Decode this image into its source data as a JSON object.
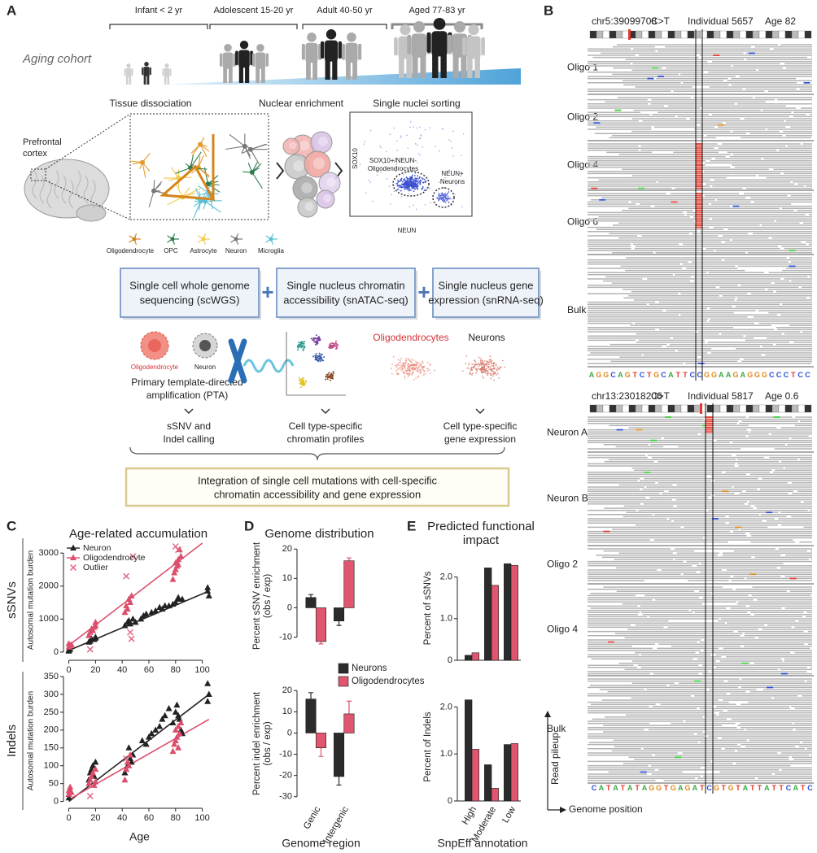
{
  "panel_labels": [
    "A",
    "B",
    "C",
    "D",
    "E"
  ],
  "panel_a": {
    "age_groups": [
      "Infant < 2 yr",
      "Adolescent  15-20 yr",
      "Adult  40-50 yr",
      "Aged 77-83 yr"
    ],
    "cohort_label": "Aging cohort",
    "steps": [
      "Tissue dissociation",
      "Nuclear enrichment",
      "Single nuclei sorting"
    ],
    "region": [
      "Prefrontal",
      "cortex"
    ],
    "cell_types": [
      "Oligodendrocyte",
      "OPC",
      "Astrocyte",
      "Neuron",
      "Microglia"
    ],
    "facs": {
      "y_axis": "SOX10",
      "x_axis": "NEUN",
      "gate_1": [
        "SOX10+/NEUN-",
        "Oligodendrocytes"
      ],
      "gate_2": [
        "NEUN+",
        "Neurons"
      ]
    },
    "methods": [
      [
        "Single cell whole genome",
        "sequencing (scWGS)"
      ],
      [
        "Single nucleus chromatin",
        "accessibility (snATAC-seq)"
      ],
      [
        "Single nucleus gene",
        "expression (snRNA-seq)"
      ]
    ],
    "connectors": [
      "+",
      "+"
    ],
    "pta_cells": [
      "Oligodendrocyte",
      "Neuron"
    ],
    "pta": [
      "Primary template-directed",
      "amplification (PTA)"
    ],
    "expression_groups": [
      "Oligodendrocytes",
      "Neurons"
    ],
    "outputs": [
      [
        "sSNV and",
        "Indel calling"
      ],
      [
        "Cell type-specific",
        "chromatin profiles"
      ],
      [
        "Cell type-specific",
        "gene expression"
      ]
    ],
    "integration": [
      "Integration of single cell mutations with cell-specific",
      "chromatin accessibility and gene expression"
    ]
  },
  "panel_b": {
    "loci": [
      {
        "position": "chr5:39099708",
        "change": "C>T",
        "individual": "Individual 5657",
        "age": "Age 82",
        "tracks": [
          "Oligo 1",
          "Oligo 2",
          "Oligo 4",
          "Oligo 6",
          "Bulk"
        ],
        "sequence": "AGGCAGTCTGCATTCCGGAAGAGGGCCCTCC"
      },
      {
        "position": "chr13:23018206",
        "change": "C>T",
        "individual": "Individual 5817",
        "age": "Age 0.6",
        "tracks": [
          "Neuron A",
          "Neuron B",
          "Oligo 2",
          "Oligo 4",
          "Bulk"
        ],
        "sequence": "CATATATAGGTGAGATCGTGTATTATTCATC"
      }
    ],
    "y_axis": "Read pileup",
    "x_axis": "Genome position"
  },
  "chart_data": [
    {
      "type": "scatter",
      "title": "Age-related accumulation",
      "side_label": "sSNVs",
      "ylabel": "Autosomal mutation burden",
      "xlim": [
        -4,
        110
      ],
      "xticks": [
        0,
        20,
        40,
        60,
        80,
        100
      ],
      "ylim": [
        -150,
        3300
      ],
      "yticks": [
        0,
        1000,
        2000,
        3000
      ],
      "series": [
        {
          "name": "Neuron",
          "color": "#222222",
          "marker": "triangle",
          "x": [
            0,
            0,
            1,
            15,
            16,
            17,
            19,
            20,
            20,
            42,
            44,
            45,
            46,
            48,
            50,
            54,
            56,
            58,
            62,
            65,
            68,
            70,
            72,
            75,
            78,
            80,
            82,
            82,
            85,
            104,
            104,
            105
          ],
          "values": [
            30,
            60,
            80,
            300,
            330,
            400,
            380,
            420,
            450,
            800,
            900,
            950,
            850,
            1000,
            900,
            1000,
            1100,
            1150,
            1200,
            1250,
            1350,
            1300,
            1400,
            1400,
            1450,
            1500,
            1600,
            1650,
            1600,
            1850,
            1950,
            1700
          ]
        },
        {
          "name": "Oligodendrocyte",
          "color": "#dc4f6c",
          "marker": "triangle",
          "x": [
            0,
            0,
            1,
            2,
            15,
            16,
            17,
            18,
            19,
            20,
            20,
            42,
            43,
            44,
            45,
            46,
            47,
            78,
            79,
            80,
            80,
            81,
            82,
            82,
            83,
            84
          ],
          "values": [
            150,
            250,
            200,
            220,
            500,
            600,
            700,
            650,
            750,
            800,
            900,
            1200,
            1400,
            1300,
            1600,
            1500,
            1700,
            2200,
            2400,
            2500,
            2700,
            2600,
            2800,
            2650,
            3100,
            2900
          ]
        },
        {
          "name": "Outlier",
          "color": "#e0607a",
          "marker": "x",
          "x": [
            16,
            43,
            46,
            47,
            48,
            80,
            82
          ],
          "values": [
            80,
            2300,
            600,
            400,
            2900,
            3200,
            3100
          ]
        }
      ],
      "fits": [
        {
          "color": "#222222",
          "x": [
            0,
            105
          ],
          "values": [
            50,
            1850
          ]
        },
        {
          "color": "#dc4f6c",
          "x": [
            0,
            100
          ],
          "values": [
            200,
            3300
          ]
        }
      ]
    },
    {
      "type": "scatter",
      "side_label": "Indels",
      "ylabel": "Autosomal mutation burden",
      "xlabel": "Age",
      "xlim": [
        -4,
        110
      ],
      "xticks": [
        0,
        20,
        40,
        60,
        80,
        100
      ],
      "ylim": [
        -10,
        350
      ],
      "yticks": [
        0,
        50,
        100,
        150,
        200,
        250,
        300,
        350
      ],
      "series": [
        {
          "color": "#222222",
          "marker": "triangle",
          "x": [
            0,
            0,
            1,
            15,
            16,
            17,
            18,
            19,
            20,
            42,
            43,
            44,
            45,
            46,
            47,
            48,
            55,
            58,
            60,
            62,
            65,
            68,
            70,
            72,
            75,
            78,
            80,
            81,
            82,
            83,
            84,
            85,
            104,
            104,
            105
          ],
          "values": [
            10,
            20,
            30,
            60,
            80,
            90,
            100,
            70,
            110,
            80,
            90,
            100,
            150,
            120,
            110,
            130,
            170,
            160,
            180,
            190,
            200,
            210,
            230,
            240,
            260,
            220,
            250,
            270,
            240,
            230,
            200,
            190,
            330,
            280,
            300
          ]
        },
        {
          "color": "#dc4f6c",
          "marker": "triangle",
          "x": [
            0,
            0,
            1,
            2,
            15,
            16,
            17,
            18,
            19,
            20,
            20,
            42,
            43,
            44,
            45,
            46,
            78,
            79,
            80,
            80,
            81,
            82,
            82,
            83,
            84
          ],
          "values": [
            20,
            30,
            40,
            25,
            50,
            60,
            70,
            80,
            45,
            90,
            55,
            60,
            90,
            110,
            100,
            130,
            140,
            160,
            170,
            200,
            180,
            210,
            150,
            190,
            220
          ]
        },
        {
          "color": "#e0607a",
          "marker": "x",
          "x": [
            16,
            43
          ],
          "values": [
            15,
            120
          ]
        }
      ],
      "fits": [
        {
          "color": "#222222",
          "x": [
            0,
            105
          ],
          "values": [
            0,
            300
          ]
        },
        {
          "color": "#dc4f6c",
          "x": [
            0,
            105
          ],
          "values": [
            5,
            230
          ]
        }
      ]
    },
    {
      "type": "bar",
      "title": "Genome distribution",
      "ylabel": [
        "Percent sSNV enrichment",
        "(obs / exp)"
      ],
      "categories": [
        null,
        null
      ],
      "ylim": [
        -14,
        22
      ],
      "yticks": [
        -10,
        0,
        10,
        20
      ],
      "series": [
        {
          "name": "Neurons",
          "color": "#2b2b2b",
          "values": [
            3.5,
            -4.5
          ],
          "errors": [
            1,
            1.5
          ]
        },
        {
          "name": "Oligodendrocytes",
          "color": "#e0566e",
          "values": [
            -11.5,
            16
          ],
          "errors": [
            0.8,
            1
          ]
        }
      ]
    },
    {
      "type": "bar",
      "ylabel": [
        "Percent indel enrichment",
        "(obs / exp)"
      ],
      "xlabel": "Genome region",
      "categories": [
        "Genic",
        "Intergenic"
      ],
      "ylim": [
        -32,
        22
      ],
      "yticks": [
        -30,
        -20,
        -10,
        0,
        10,
        20
      ],
      "series": [
        {
          "color": "#2b2b2b",
          "values": [
            16,
            -20.5
          ],
          "errors": [
            3,
            4
          ]
        },
        {
          "color": "#e0566e",
          "values": [
            -7,
            9
          ],
          "errors": [
            4,
            6
          ]
        }
      ]
    },
    {
      "type": "bar",
      "title": [
        "Predicted functional",
        "impact"
      ],
      "ylabel": "Percent of sSNVs",
      "categories": [
        null,
        null,
        null
      ],
      "ylim": [
        0,
        2.5
      ],
      "yticks": [
        0,
        {
          "value": 1,
          "label": "1.0"
        },
        {
          "value": 2,
          "label": "2.0"
        }
      ],
      "series": [
        {
          "color": "#2b2b2b",
          "values": [
            0.12,
            2.22,
            2.32
          ]
        },
        {
          "color": "#e0566e",
          "values": [
            0.18,
            1.8,
            2.28
          ]
        }
      ]
    },
    {
      "type": "bar",
      "ylabel": "Percent of Indels",
      "xlabel": "SnpEff annotation",
      "categories": [
        "High",
        "Moderate",
        "Low"
      ],
      "ylim": [
        0,
        2.3
      ],
      "yticks": [
        0,
        {
          "value": 1,
          "label": "1.0"
        },
        {
          "value": 2,
          "label": "2.0"
        }
      ],
      "series": [
        {
          "color": "#2b2b2b",
          "values": [
            2.15,
            0.77,
            1.2
          ]
        },
        {
          "color": "#e0566e",
          "values": [
            1.1,
            0.27,
            1.22
          ]
        }
      ]
    }
  ]
}
